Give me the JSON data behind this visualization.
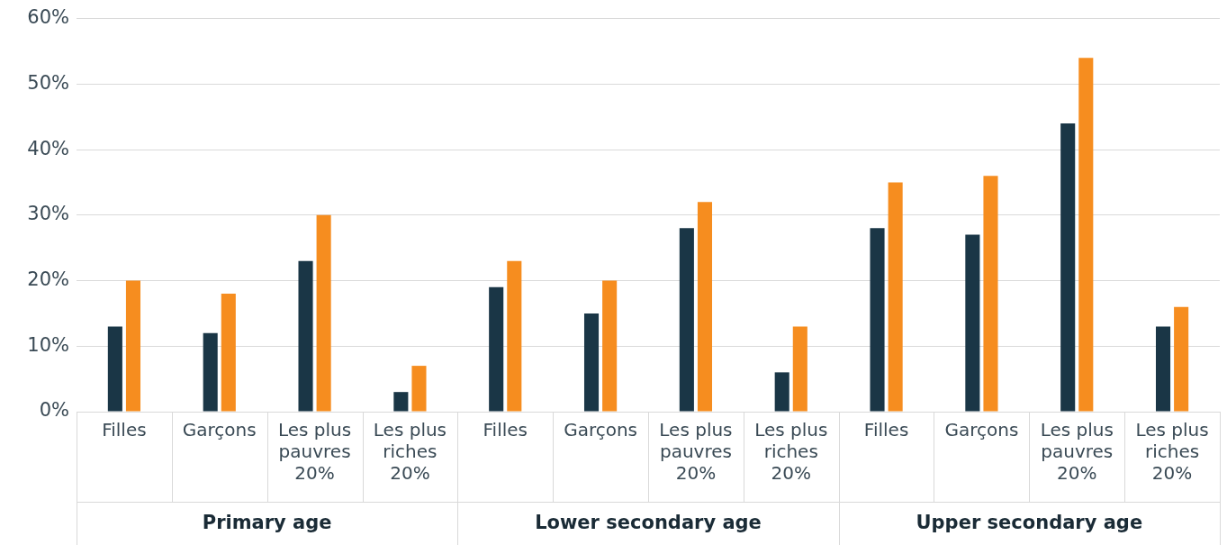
{
  "chart_data": {
    "type": "bar",
    "categories": [
      "Filles",
      "Garçons",
      "Les plus pauvres 20%",
      "Les plus riches 20%",
      "Filles",
      "Garçons",
      "Les plus pauvres 20%",
      "Les plus riches 20%",
      "Filles",
      "Garçons",
      "Les plus pauvres 20%",
      "Les plus riches 20%"
    ],
    "series": [
      {
        "color": "#1a3646",
        "values": [
          13,
          12,
          23,
          3,
          19,
          15,
          28,
          6,
          28,
          27,
          44,
          13
        ]
      },
      {
        "color": "#f68d1f",
        "values": [
          20,
          18,
          30,
          7,
          23,
          20,
          32,
          13,
          35,
          36,
          54,
          16
        ]
      }
    ],
    "annotations": [
      "Primary age",
      "Lower secondary age",
      "Upper secondary age"
    ],
    "ylim": [
      0,
      60
    ],
    "yticks": [
      {
        "value": 0,
        "label": "0%"
      },
      {
        "value": 10,
        "label": "10%"
      },
      {
        "value": 20,
        "label": "20%"
      },
      {
        "value": 30,
        "label": "30%"
      },
      {
        "value": 40,
        "label": "40%"
      },
      {
        "value": 50,
        "label": "50%"
      },
      {
        "value": 60,
        "label": "60%"
      }
    ],
    "grid": "y",
    "legend": false
  }
}
